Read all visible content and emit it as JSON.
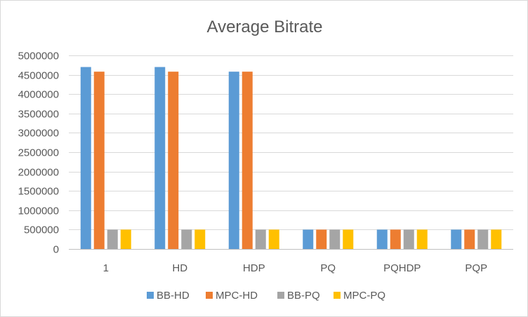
{
  "chart_data": {
    "type": "bar",
    "title": "Average Bitrate",
    "xlabel": "",
    "ylabel": "",
    "categories": [
      "1",
      "HD",
      "HDP",
      "PQ",
      "PQHDP",
      "PQP"
    ],
    "ylim": [
      0,
      5000000
    ],
    "yticks": [
      0,
      500000,
      1000000,
      1500000,
      2000000,
      2500000,
      3000000,
      3500000,
      4000000,
      4500000,
      5000000
    ],
    "grid": true,
    "legend_position": "bottom",
    "series": [
      {
        "name": "BB-HD",
        "color": "#5b9bd5",
        "values": [
          4700000,
          4700000,
          4580000,
          500000,
          500000,
          500000
        ]
      },
      {
        "name": "MPC-HD",
        "color": "#ed7d31",
        "values": [
          4580000,
          4580000,
          4580000,
          500000,
          500000,
          500000
        ]
      },
      {
        "name": "BB-PQ",
        "color": "#a5a5a5",
        "values": [
          500000,
          500000,
          500000,
          500000,
          500000,
          500000
        ]
      },
      {
        "name": "MPC-PQ",
        "color": "#ffc000",
        "values": [
          500000,
          500000,
          500000,
          500000,
          500000,
          500000
        ]
      }
    ]
  }
}
